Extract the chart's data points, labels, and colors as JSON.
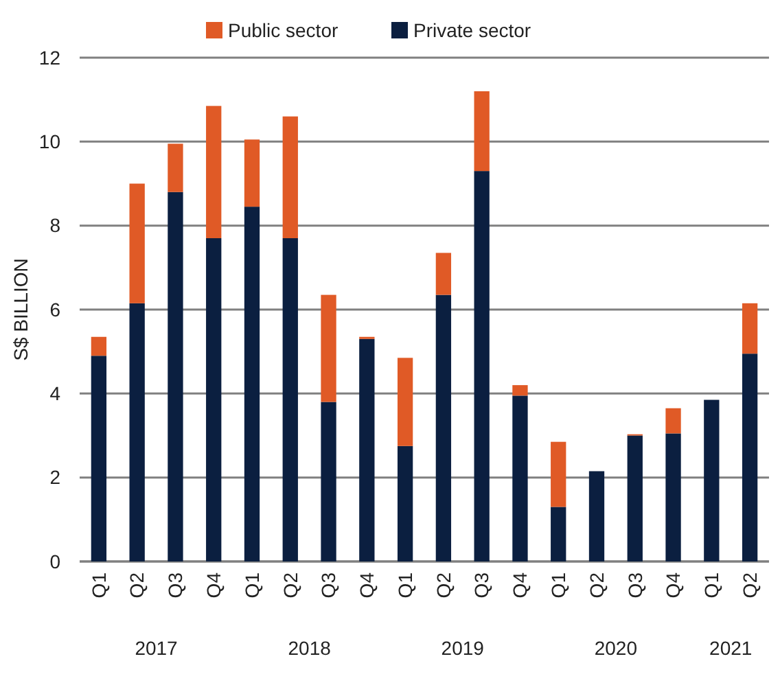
{
  "chart_data": {
    "type": "bar",
    "stacked": true,
    "ylabel": "S$ BILLION",
    "categories": [
      "Q1",
      "Q2",
      "Q3",
      "Q4",
      "Q1",
      "Q2",
      "Q3",
      "Q4",
      "Q1",
      "Q2",
      "Q3",
      "Q4",
      "Q1",
      "Q2",
      "Q3",
      "Q4",
      "Q1",
      "Q2"
    ],
    "series": [
      {
        "name": "Private sector",
        "color": "#0b1f40",
        "values": [
          4.9,
          6.15,
          8.8,
          7.7,
          8.45,
          7.7,
          3.8,
          5.3,
          2.75,
          6.35,
          9.3,
          3.95,
          1.3,
          2.15,
          3.0,
          3.05,
          3.85,
          4.95
        ]
      },
      {
        "name": "Public sector",
        "color": "#e05a26",
        "values": [
          0.45,
          2.85,
          1.15,
          3.15,
          1.6,
          2.9,
          2.55,
          0.05,
          2.1,
          1.0,
          1.9,
          0.25,
          1.55,
          0,
          0.03,
          0.6,
          0,
          1.2
        ]
      }
    ],
    "ylim": [
      0,
      12
    ],
    "yticks": [
      0,
      2,
      4,
      6,
      8,
      10,
      12
    ],
    "grid": "y",
    "legend": "top",
    "annotations": [
      "2017",
      "2018",
      "2019",
      "2020",
      "2021"
    ]
  }
}
